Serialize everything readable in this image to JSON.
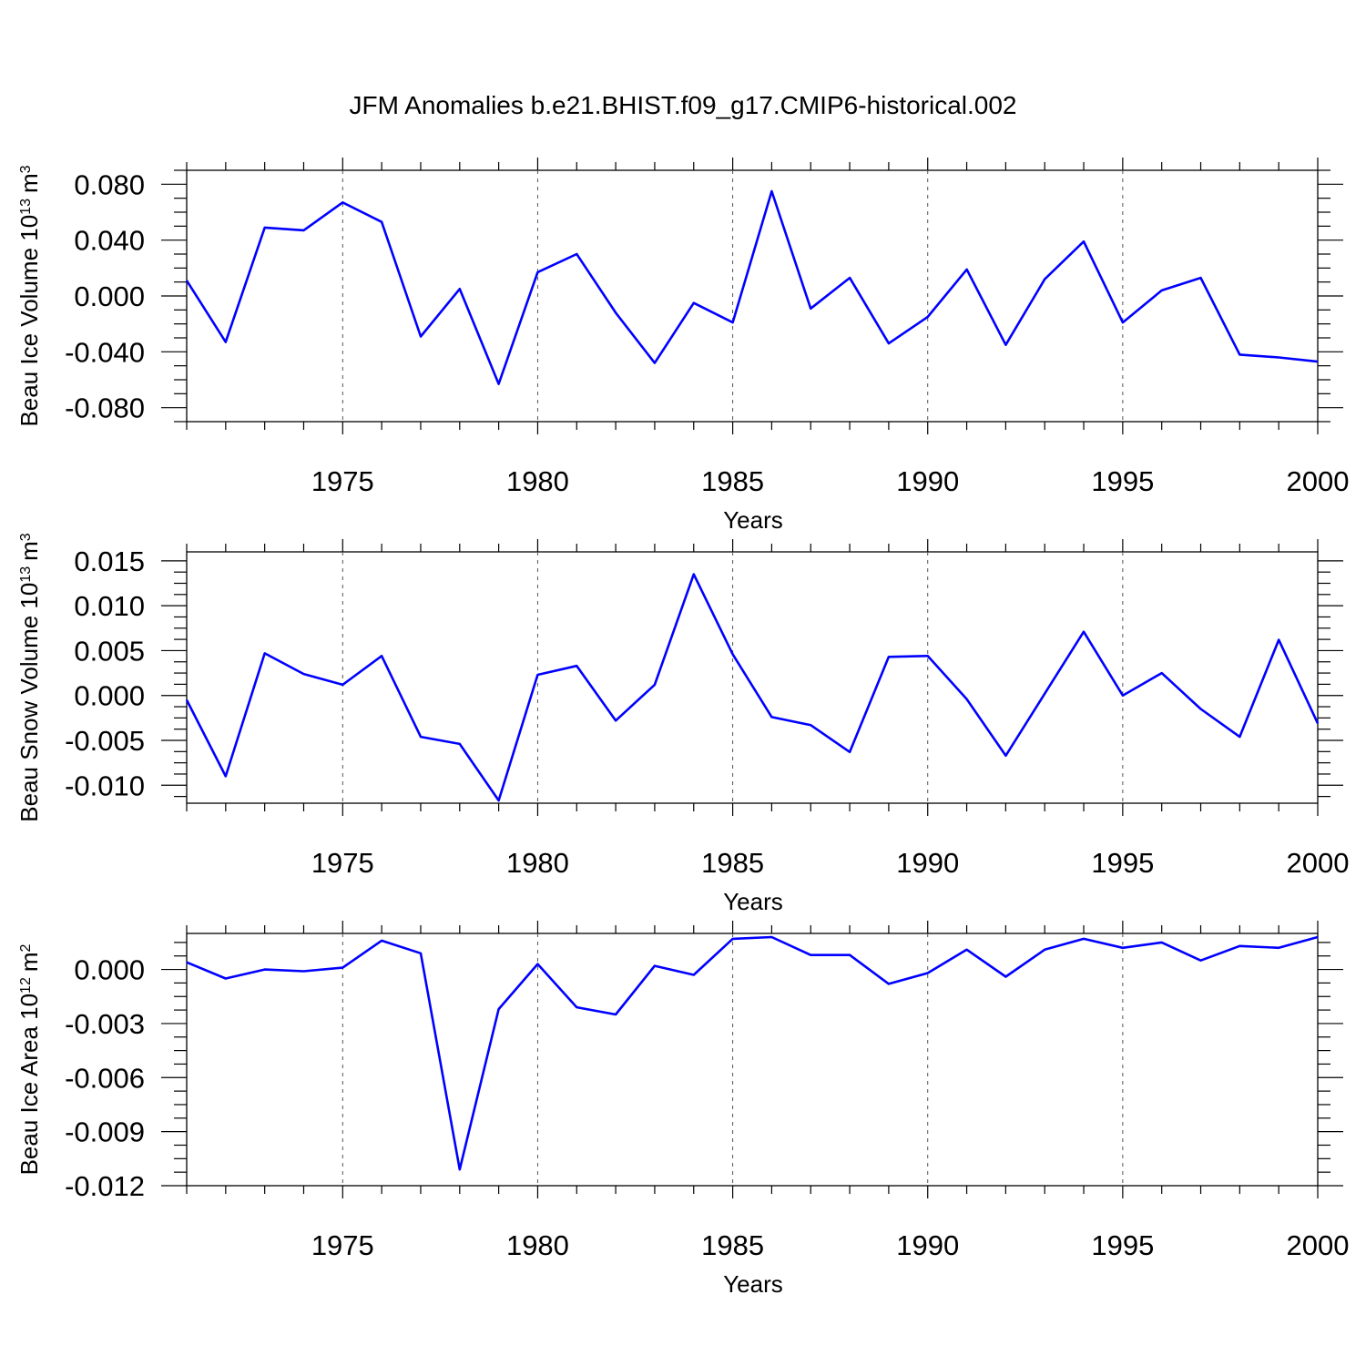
{
  "title": "JFM Anomalies b.e21.BHIST.f09_g17.CMIP6-historical.002",
  "colors": {
    "line": "#0000ff",
    "axes": "#000000",
    "grid": "#555555"
  },
  "chart_data": [
    {
      "type": "line",
      "ylabel": "Beau Ice Volume 10",
      "ylabel_sup": "13",
      "ylabel_unit": "m",
      "ylabel_unit_sup": "3",
      "xlabel": "Years",
      "xlim": [
        1971,
        2000
      ],
      "ylim": [
        -0.09,
        0.09
      ],
      "xticks": [
        "1975",
        "1980",
        "1985",
        "1990",
        "1995",
        "2000"
      ],
      "yticks": [
        "0.080",
        "0.040",
        "0.000",
        "-0.040",
        "-0.080"
      ],
      "grid": "vertical dashed at 5-year ticks",
      "x": [
        1971,
        1972,
        1973,
        1974,
        1975,
        1976,
        1977,
        1978,
        1979,
        1980,
        1981,
        1982,
        1983,
        1984,
        1985,
        1986,
        1987,
        1988,
        1989,
        1990,
        1991,
        1992,
        1993,
        1994,
        1995,
        1996,
        1997,
        1998,
        1999,
        2000
      ],
      "values": [
        0.011,
        -0.033,
        0.049,
        0.047,
        0.067,
        0.053,
        -0.029,
        0.005,
        -0.063,
        0.017,
        0.03,
        -0.012,
        -0.048,
        -0.005,
        -0.019,
        0.075,
        -0.009,
        0.013,
        -0.034,
        -0.015,
        0.019,
        -0.035,
        0.012,
        0.039,
        -0.019,
        0.004,
        0.013,
        -0.042,
        -0.044,
        -0.047
      ]
    },
    {
      "type": "line",
      "ylabel": "Beau Snow Volume 10",
      "ylabel_sup": "13",
      "ylabel_unit": "m",
      "ylabel_unit_sup": "3",
      "xlabel": "Years",
      "xlim": [
        1971,
        2000
      ],
      "ylim": [
        -0.012,
        0.016
      ],
      "xticks": [
        "1975",
        "1980",
        "1985",
        "1990",
        "1995",
        "2000"
      ],
      "yticks": [
        "0.015",
        "0.010",
        "0.005",
        "0.000",
        "-0.005",
        "-0.010"
      ],
      "grid": "vertical dashed at 5-year ticks",
      "x": [
        1971,
        1972,
        1973,
        1974,
        1975,
        1976,
        1977,
        1978,
        1979,
        1980,
        1981,
        1982,
        1983,
        1984,
        1985,
        1986,
        1987,
        1988,
        1989,
        1990,
        1991,
        1992,
        1993,
        1994,
        1995,
        1996,
        1997,
        1998,
        1999,
        2000
      ],
      "values": [
        -0.0005,
        -0.009,
        0.0047,
        0.0024,
        0.0012,
        0.0044,
        -0.0046,
        -0.0054,
        -0.0117,
        0.0023,
        0.0033,
        -0.0028,
        0.0012,
        0.0135,
        0.0046,
        -0.0024,
        -0.0033,
        -0.0063,
        0.0043,
        0.0044,
        -0.0004,
        -0.0067,
        0.0002,
        0.0071,
        0.0,
        0.0025,
        -0.0015,
        -0.0046,
        0.0062,
        -0.0031
      ]
    },
    {
      "type": "line",
      "ylabel": "Beau Ice Area 10",
      "ylabel_sup": "12",
      "ylabel_unit": "m",
      "ylabel_unit_sup": "2",
      "xlabel": "Years",
      "xlim": [
        1971,
        2000
      ],
      "ylim": [
        -0.012,
        0.002
      ],
      "xticks": [
        "1975",
        "1980",
        "1985",
        "1990",
        "1995",
        "2000"
      ],
      "yticks": [
        "0.000",
        "-0.003",
        "-0.006",
        "-0.009",
        "-0.012"
      ],
      "grid": "vertical dashed at 5-year ticks",
      "x": [
        1971,
        1972,
        1973,
        1974,
        1975,
        1976,
        1977,
        1978,
        1979,
        1980,
        1981,
        1982,
        1983,
        1984,
        1985,
        1986,
        1987,
        1988,
        1989,
        1990,
        1991,
        1992,
        1993,
        1994,
        1995,
        1996,
        1997,
        1998,
        1999,
        2000
      ],
      "values": [
        0.0004,
        -0.0005,
        0.0,
        -0.0001,
        0.0001,
        0.0016,
        0.0009,
        -0.0111,
        -0.0022,
        0.0003,
        -0.0021,
        -0.0025,
        0.0002,
        -0.0003,
        0.0017,
        0.0018,
        0.0008,
        0.0008,
        -0.0008,
        -0.0002,
        0.0011,
        -0.0004,
        0.0011,
        0.0017,
        0.0012,
        0.0015,
        0.0005,
        0.0013,
        0.0012,
        0.0018
      ]
    }
  ]
}
